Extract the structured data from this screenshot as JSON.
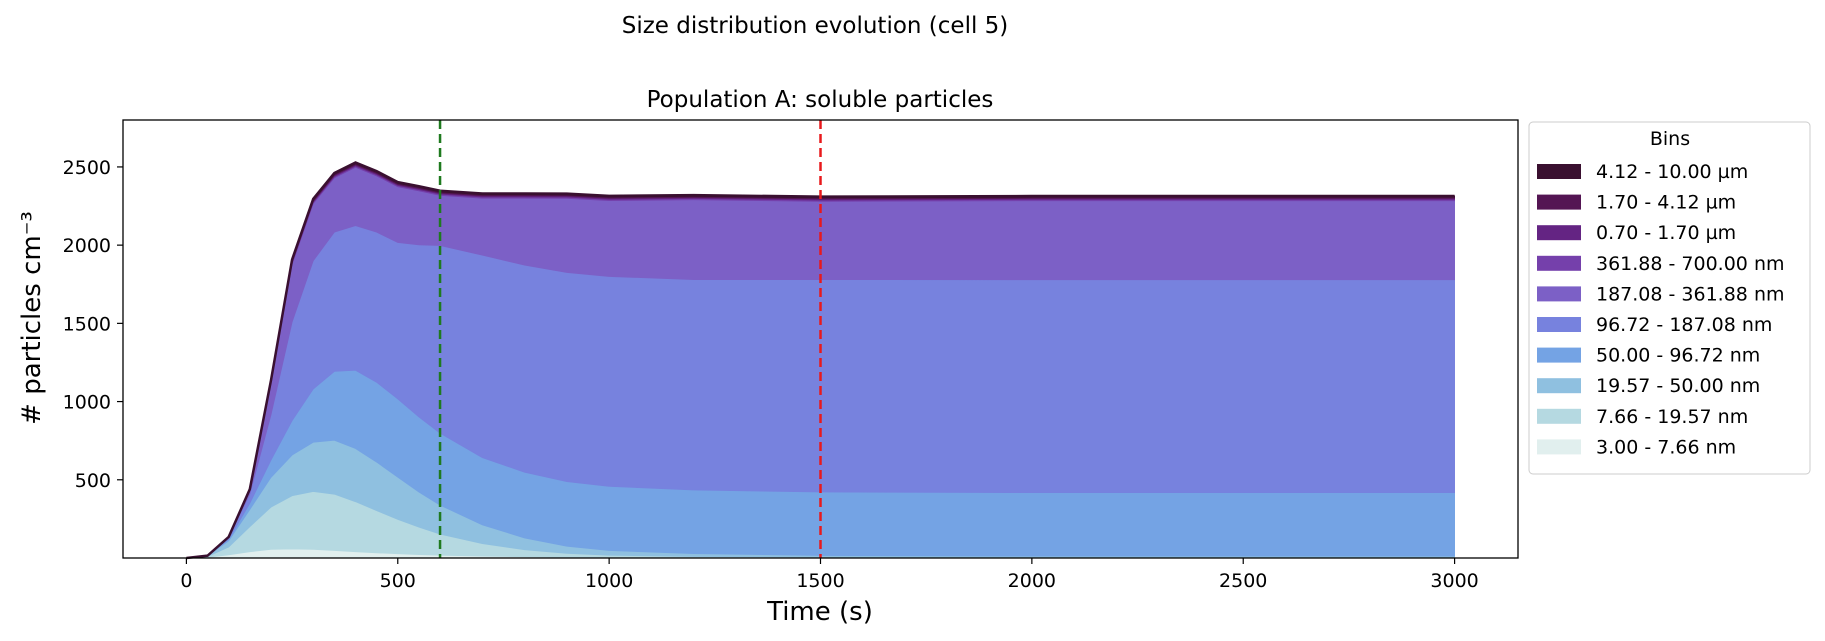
{
  "figure": {
    "suptitle": "Size distribution evolution (cell 5)"
  },
  "chart_data": {
    "type": "area",
    "stacked": true,
    "title": "Population A: soluble particles",
    "xlabel": "Time (s)",
    "ylabel": "# particles cm⁻³",
    "xlim": [
      -150,
      3150
    ],
    "ylim": [
      0,
      2800
    ],
    "xticks": [
      0,
      500,
      1000,
      1500,
      2000,
      2500,
      3000
    ],
    "yticks": [
      500,
      1000,
      1500,
      2000,
      2500
    ],
    "grid": false,
    "legend": {
      "title": "Bins",
      "placement": "outside-right"
    },
    "vlines": [
      {
        "x": 600,
        "color": "#1f7a1f",
        "style": "dashed"
      },
      {
        "x": 1500,
        "color": "#e8191c",
        "style": "dashed"
      }
    ],
    "x": [
      0,
      50,
      100,
      150,
      200,
      250,
      300,
      350,
      400,
      450,
      500,
      550,
      600,
      700,
      800,
      900,
      1000,
      1200,
      1500,
      2000,
      2500,
      3000
    ],
    "series": [
      {
        "name": "3.00 - 7.66 nm",
        "color": "#e1efee",
        "values": [
          0,
          5,
          20,
          40,
          55,
          58,
          55,
          48,
          40,
          33,
          27,
          22,
          18,
          12,
          8,
          5,
          3,
          2,
          1,
          1,
          1,
          1
        ]
      },
      {
        "name": "7.66 - 19.57 nm",
        "color": "#b5d9e1",
        "values": [
          0,
          5,
          50,
          160,
          270,
          340,
          370,
          360,
          320,
          270,
          220,
          175,
          135,
          80,
          45,
          25,
          15,
          8,
          5,
          3,
          3,
          3
        ]
      },
      {
        "name": "19.57 - 50.00 nm",
        "color": "#8fc0e0",
        "values": [
          0,
          5,
          40,
          110,
          190,
          260,
          315,
          345,
          340,
          310,
          270,
          225,
          185,
          120,
          75,
          45,
          30,
          18,
          10,
          8,
          8,
          8
        ]
      },
      {
        "name": "50.00 - 96.72 nm",
        "color": "#74a3e4",
        "values": [
          0,
          0,
          10,
          40,
          110,
          220,
          340,
          440,
          500,
          510,
          500,
          480,
          460,
          430,
          420,
          413,
          410,
          407,
          406,
          406,
          406,
          406
        ]
      },
      {
        "name": "96.72 - 187.08 nm",
        "color": "#7782de",
        "values": [
          0,
          0,
          10,
          60,
          290,
          630,
          820,
          890,
          925,
          960,
          1000,
          1100,
          1200,
          1294,
          1324,
          1337,
          1342,
          1345,
          1358,
          1361,
          1361,
          1361
        ]
      },
      {
        "name": "187.08 - 361.88 nm",
        "color": "#7c60c6",
        "values": [
          0,
          0,
          5,
          30,
          200,
          370,
          366,
          348,
          373,
          360,
          356,
          345,
          320,
          364,
          428,
          474,
          485,
          510,
          500,
          505,
          505,
          505
        ]
      },
      {
        "name": "361.88 - 700.00 nm",
        "color": "#7540ab",
        "values": [
          0,
          0,
          0,
          0,
          5,
          8,
          8,
          8,
          8,
          8,
          8,
          8,
          8,
          8,
          8,
          8,
          8,
          8,
          8,
          8,
          8,
          8
        ]
      },
      {
        "name": "0.70 - 1.70 µm",
        "color": "#642483",
        "values": [
          0,
          0,
          0,
          0,
          5,
          7,
          7,
          7,
          7,
          7,
          7,
          7,
          7,
          7,
          7,
          7,
          7,
          7,
          7,
          7,
          7,
          7
        ]
      },
      {
        "name": "1.70 - 4.12 µm",
        "color": "#541553",
        "values": [
          0,
          0,
          0,
          0,
          5,
          7,
          7,
          7,
          7,
          7,
          7,
          7,
          7,
          7,
          7,
          7,
          7,
          7,
          7,
          7,
          7,
          7
        ]
      },
      {
        "name": "4.12 - 10.00 µm",
        "color": "#3a1030",
        "values": [
          0,
          0,
          0,
          0,
          5,
          8,
          8,
          8,
          8,
          8,
          8,
          8,
          8,
          8,
          8,
          8,
          8,
          8,
          8,
          8,
          8,
          8
        ]
      }
    ]
  }
}
